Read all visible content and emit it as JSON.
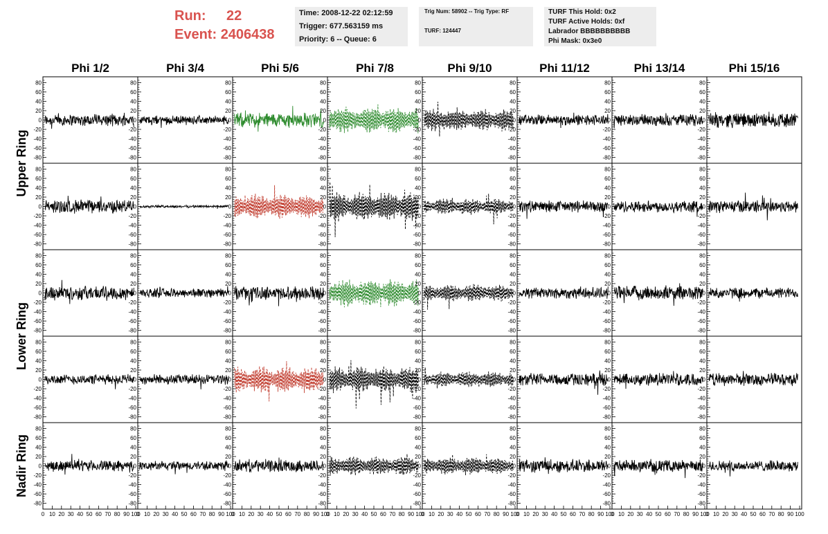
{
  "header": {
    "run_label": "Run:",
    "run_value": "22",
    "event_label": "Event:",
    "event_value": "2406438"
  },
  "info_time": {
    "time": "Time: 2008-12-22 02:12:59",
    "trigger": "Trigger: 677.563159 ms",
    "priority": "Priority: 6 -- Queue: 6"
  },
  "info_trig": {
    "trig": "Trig Num: 58902 -- Trig Type: RF",
    "turf": "TURF: 124447"
  },
  "info_turf": {
    "this_hold": "TURF This Hold: 0x2",
    "active_holds": "TURF Active Holds: 0xf",
    "labrador": "Labrador BBBBBBBBBB",
    "phi_mask": "Phi Mask: 0x3e0"
  },
  "colors": {
    "accent_text": "#d9534f",
    "box_bg": "#ededed",
    "trace_default": "#000000",
    "trace_green": "#2e8b2e",
    "trace_red": "#c0392b"
  },
  "chart_data": {
    "type": "line",
    "column_titles": [
      "Phi 1/2",
      "Phi 3/4",
      "Phi 5/6",
      "Phi 7/8",
      "Phi 9/10",
      "Phi 11/12",
      "Phi 13/14",
      "Phi 15/16"
    ],
    "row_titles": [
      "Upper Ring",
      "Lower Ring",
      "Nadir Ring"
    ],
    "xlim": [
      0,
      100
    ],
    "ylim": [
      -85,
      85
    ],
    "x_ticks": [
      0,
      10,
      20,
      30,
      40,
      50,
      60,
      70,
      80,
      90,
      100
    ],
    "y_ticks": [
      -80,
      -60,
      -40,
      -20,
      0,
      20,
      40,
      60,
      80
    ],
    "panel_rows": 5,
    "panel_cols": 8,
    "panels": [
      [
        {
          "style": "solid",
          "color": "black",
          "amp": 14
        },
        {
          "style": "solid",
          "color": "black",
          "amp": 10
        },
        {
          "style": "solid",
          "color": "green",
          "amp": 18
        },
        {
          "style": "dashed",
          "color": "green",
          "amp": 30
        },
        {
          "style": "dashed",
          "color": "black",
          "amp": 26
        },
        {
          "style": "solid",
          "color": "black",
          "amp": 13
        },
        {
          "style": "solid",
          "color": "black",
          "amp": 14
        },
        {
          "style": "solid",
          "color": "black",
          "amp": 18
        }
      ],
      [
        {
          "style": "solid",
          "color": "black",
          "amp": 16
        },
        {
          "style": "solid",
          "color": "black",
          "amp": 3
        },
        {
          "style": "dashed",
          "color": "red",
          "amp": 28
        },
        {
          "style": "dashed",
          "color": "black",
          "amp": 34
        },
        {
          "style": "dashed",
          "color": "black",
          "amp": 18
        },
        {
          "style": "solid",
          "color": "black",
          "amp": 14
        },
        {
          "style": "solid",
          "color": "black",
          "amp": 14
        },
        {
          "style": "solid",
          "color": "black",
          "amp": 15
        }
      ],
      [
        {
          "style": "solid",
          "color": "black",
          "amp": 17
        },
        {
          "style": "solid",
          "color": "black",
          "amp": 11
        },
        {
          "style": "solid",
          "color": "black",
          "amp": 16
        },
        {
          "style": "dashed",
          "color": "green",
          "amp": 32
        },
        {
          "style": "dashed",
          "color": "black",
          "amp": 20
        },
        {
          "style": "solid",
          "color": "black",
          "amp": 14
        },
        {
          "style": "solid",
          "color": "black",
          "amp": 17
        },
        {
          "style": "solid",
          "color": "black",
          "amp": 13
        }
      ],
      [
        {
          "style": "solid",
          "color": "black",
          "amp": 12
        },
        {
          "style": "solid",
          "color": "black",
          "amp": 12
        },
        {
          "style": "dashed",
          "color": "red",
          "amp": 30
        },
        {
          "style": "dashed",
          "color": "black",
          "amp": 30
        },
        {
          "style": "dashed",
          "color": "black",
          "amp": 18
        },
        {
          "style": "solid",
          "color": "black",
          "amp": 15
        },
        {
          "style": "solid",
          "color": "black",
          "amp": 15
        },
        {
          "style": "solid",
          "color": "black",
          "amp": 15
        }
      ],
      [
        {
          "style": "solid",
          "color": "black",
          "amp": 13
        },
        {
          "style": "solid",
          "color": "black",
          "amp": 11
        },
        {
          "style": "solid",
          "color": "black",
          "amp": 15
        },
        {
          "style": "dashed",
          "color": "black",
          "amp": 22
        },
        {
          "style": "dashed",
          "color": "black",
          "amp": 20
        },
        {
          "style": "solid",
          "color": "black",
          "amp": 16
        },
        {
          "style": "solid",
          "color": "black",
          "amp": 14
        },
        {
          "style": "solid",
          "color": "black",
          "amp": 13
        }
      ]
    ]
  }
}
